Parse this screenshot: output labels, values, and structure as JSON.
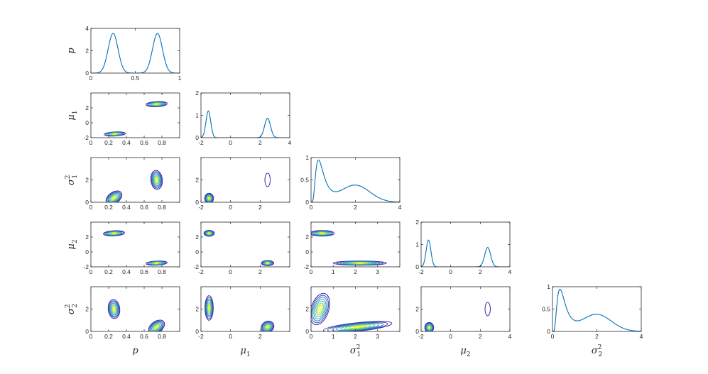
{
  "figure": {
    "type": "corner-plot",
    "layout": "lower-triangular 5x5"
  },
  "variables": [
    {
      "name": "p",
      "base": "p",
      "sub": "",
      "sup": ""
    },
    {
      "name": "mu1",
      "base": "μ",
      "sub": "1",
      "sup": ""
    },
    {
      "name": "sigma1sq",
      "base": "σ",
      "sub": "1",
      "sup": "2"
    },
    {
      "name": "mu2",
      "base": "μ",
      "sub": "2",
      "sup": ""
    },
    {
      "name": "sigma2sq",
      "base": "σ",
      "sub": "2",
      "sup": "2"
    }
  ],
  "colors": {
    "line": "#0072bd",
    "axis": "#262626",
    "contour_low": "#3e26a8",
    "contour_mid": "#2db2c8",
    "contour_high": "#f9fb0e"
  },
  "chart_data": [
    {
      "type": "line",
      "row": 0,
      "col": 0,
      "var": "p",
      "xlim": [
        0,
        1
      ],
      "ylim": [
        0,
        4
      ],
      "xticks": [
        {
          "v": 0,
          "label": "0"
        },
        {
          "v": 0.5,
          "label": "0.5"
        },
        {
          "v": 1,
          "label": "1"
        }
      ],
      "yticks": [
        {
          "v": 0,
          "label": "0"
        },
        {
          "v": 2,
          "label": "2"
        },
        {
          "v": 4,
          "label": "4"
        }
      ],
      "components": [
        {
          "mu": 0.25,
          "sd": 0.056,
          "amp": 3.55
        },
        {
          "mu": 0.75,
          "sd": 0.056,
          "amp": 3.55
        }
      ]
    },
    {
      "type": "line",
      "row": 1,
      "col": 1,
      "var": "mu1",
      "xlim": [
        -2,
        4
      ],
      "ylim": [
        0,
        2
      ],
      "xticks": [
        {
          "v": -2,
          "label": "-2"
        },
        {
          "v": 0,
          "label": "0"
        },
        {
          "v": 2,
          "label": "2"
        },
        {
          "v": 4,
          "label": "4"
        }
      ],
      "yticks": [
        {
          "v": 0,
          "label": "0"
        },
        {
          "v": 1,
          "label": "1"
        },
        {
          "v": 2,
          "label": "2"
        }
      ],
      "components": [
        {
          "mu": -1.5,
          "sd": 0.16,
          "amp": 1.2
        },
        {
          "mu": 2.5,
          "sd": 0.2,
          "amp": 0.87
        }
      ]
    },
    {
      "type": "line",
      "row": 2,
      "col": 2,
      "var": "sigma1sq",
      "xlim": [
        0,
        4
      ],
      "ylim": [
        0,
        1
      ],
      "xticks": [
        {
          "v": 0,
          "label": "0"
        },
        {
          "v": 2,
          "label": "2"
        },
        {
          "v": 4,
          "label": "4"
        }
      ],
      "yticks": [
        {
          "v": 0,
          "label": "0"
        },
        {
          "v": 0.5,
          "label": "0.5"
        },
        {
          "v": 1,
          "label": "1"
        }
      ],
      "components": [
        {
          "mu": 0.38,
          "sd": 0.2,
          "amp": 0.93,
          "logn": true
        },
        {
          "mu": 2.0,
          "sd": 0.65,
          "amp": 0.38
        }
      ]
    },
    {
      "type": "line",
      "row": 3,
      "col": 3,
      "var": "mu2",
      "xlim": [
        -2,
        4
      ],
      "ylim": [
        0,
        2
      ],
      "xticks": [
        {
          "v": -2,
          "label": "-2"
        },
        {
          "v": 0,
          "label": "0"
        },
        {
          "v": 2,
          "label": "2"
        },
        {
          "v": 4,
          "label": "4"
        }
      ],
      "yticks": [
        {
          "v": 0,
          "label": "0"
        },
        {
          "v": 1,
          "label": "1"
        },
        {
          "v": 2,
          "label": "2"
        }
      ],
      "components": [
        {
          "mu": -1.5,
          "sd": 0.16,
          "amp": 1.2
        },
        {
          "mu": 2.5,
          "sd": 0.2,
          "amp": 0.87
        }
      ]
    },
    {
      "type": "line",
      "row": 4,
      "col": 4,
      "var": "sigma2sq",
      "xlim": [
        0,
        4
      ],
      "ylim": [
        0,
        1
      ],
      "xticks": [
        {
          "v": 0,
          "label": "0"
        },
        {
          "v": 2,
          "label": "2"
        },
        {
          "v": 4,
          "label": "4"
        }
      ],
      "yticks": [
        {
          "v": 0,
          "label": "0"
        },
        {
          "v": 0.5,
          "label": "0.5"
        },
        {
          "v": 1,
          "label": "1"
        }
      ],
      "components": [
        {
          "mu": 0.38,
          "sd": 0.2,
          "amp": 0.93,
          "logn": true
        },
        {
          "mu": 2.0,
          "sd": 0.65,
          "amp": 0.38
        }
      ]
    },
    {
      "type": "contour",
      "row": 1,
      "col": 0,
      "xvar": "p",
      "yvar": "mu1",
      "xlim": [
        0,
        1
      ],
      "ylim": [
        -2,
        4
      ],
      "xticks": [
        {
          "v": 0,
          "label": "0"
        },
        {
          "v": 0.2,
          "label": "0.2"
        },
        {
          "v": 0.4,
          "label": "0.4"
        },
        {
          "v": 0.6,
          "label": "0.6"
        },
        {
          "v": 0.8,
          "label": "0.8"
        }
      ],
      "yticks": [
        {
          "v": -2,
          "label": "-2"
        },
        {
          "v": 0,
          "label": "0"
        },
        {
          "v": 2,
          "label": "2"
        }
      ],
      "modes": [
        {
          "cx": 0.27,
          "cy": -1.5,
          "rx": 0.12,
          "ry": 0.28,
          "rot": -3
        },
        {
          "cx": 0.74,
          "cy": 2.5,
          "rx": 0.12,
          "ry": 0.35,
          "rot": -3
        }
      ]
    },
    {
      "type": "contour",
      "row": 2,
      "col": 0,
      "xvar": "p",
      "yvar": "sigma1sq",
      "xlim": [
        0,
        1
      ],
      "ylim": [
        0,
        4
      ],
      "xticks": [
        {
          "v": 0,
          "label": "0"
        },
        {
          "v": 0.2,
          "label": "0.2"
        },
        {
          "v": 0.4,
          "label": "0.4"
        },
        {
          "v": 0.6,
          "label": "0.6"
        },
        {
          "v": 0.8,
          "label": "0.8"
        }
      ],
      "yticks": [
        {
          "v": 0,
          "label": "0"
        },
        {
          "v": 2,
          "label": "2"
        }
      ],
      "modes": [
        {
          "cx": 0.26,
          "cy": 0.4,
          "rx": 0.1,
          "ry": 0.5,
          "rot": -35
        },
        {
          "cx": 0.74,
          "cy": 2.0,
          "rx": 0.065,
          "ry": 0.85,
          "rot": -6
        }
      ]
    },
    {
      "type": "contour",
      "row": 3,
      "col": 0,
      "xvar": "p",
      "yvar": "mu2",
      "xlim": [
        0,
        1
      ],
      "ylim": [
        -2,
        4
      ],
      "xticks": [
        {
          "v": 0,
          "label": "0"
        },
        {
          "v": 0.2,
          "label": "0.2"
        },
        {
          "v": 0.4,
          "label": "0.4"
        },
        {
          "v": 0.6,
          "label": "0.6"
        },
        {
          "v": 0.8,
          "label": "0.8"
        }
      ],
      "yticks": [
        {
          "v": -2,
          "label": "-2"
        },
        {
          "v": 0,
          "label": "0"
        },
        {
          "v": 2,
          "label": "2"
        }
      ],
      "modes": [
        {
          "cx": 0.26,
          "cy": 2.5,
          "rx": 0.12,
          "ry": 0.35,
          "rot": -3
        },
        {
          "cx": 0.74,
          "cy": -1.5,
          "rx": 0.12,
          "ry": 0.28,
          "rot": -3
        }
      ]
    },
    {
      "type": "contour",
      "row": 4,
      "col": 0,
      "xvar": "p",
      "yvar": "sigma2sq",
      "xlim": [
        0,
        1
      ],
      "ylim": [
        0,
        4
      ],
      "xticks": [
        {
          "v": 0,
          "label": "0"
        },
        {
          "v": 0.2,
          "label": "0.2"
        },
        {
          "v": 0.4,
          "label": "0.4"
        },
        {
          "v": 0.6,
          "label": "0.6"
        },
        {
          "v": 0.8,
          "label": "0.8"
        }
      ],
      "yticks": [
        {
          "v": 0,
          "label": "0"
        },
        {
          "v": 2,
          "label": "2"
        }
      ],
      "modes": [
        {
          "cx": 0.26,
          "cy": 2.0,
          "rx": 0.065,
          "ry": 0.85,
          "rot": -6
        },
        {
          "cx": 0.74,
          "cy": 0.4,
          "rx": 0.1,
          "ry": 0.5,
          "rot": -35
        }
      ]
    },
    {
      "type": "contour",
      "row": 2,
      "col": 1,
      "xvar": "mu1",
      "yvar": "sigma1sq",
      "xlim": [
        -2,
        4
      ],
      "ylim": [
        0,
        4
      ],
      "xticks": [
        {
          "v": -2,
          "label": "-2"
        },
        {
          "v": 0,
          "label": "0"
        },
        {
          "v": 2,
          "label": "2"
        }
      ],
      "yticks": [
        {
          "v": 0,
          "label": "0"
        },
        {
          "v": 2,
          "label": "2"
        }
      ],
      "modes": [
        {
          "cx": -1.45,
          "cy": 0.35,
          "rx": 0.3,
          "ry": 0.45,
          "rot": 0
        },
        {
          "cx": 2.5,
          "cy": 2.0,
          "rx": 0.18,
          "ry": 0.6,
          "rot": 0,
          "levels": 1
        }
      ]
    },
    {
      "type": "contour",
      "row": 3,
      "col": 1,
      "xvar": "mu1",
      "yvar": "mu2",
      "xlim": [
        -2,
        4
      ],
      "ylim": [
        -2,
        4
      ],
      "xticks": [
        {
          "v": -2,
          "label": "-2"
        },
        {
          "v": 0,
          "label": "0"
        },
        {
          "v": 2,
          "label": "2"
        }
      ],
      "yticks": [
        {
          "v": -2,
          "label": "-2"
        },
        {
          "v": 0,
          "label": "0"
        },
        {
          "v": 2,
          "label": "2"
        }
      ],
      "modes": [
        {
          "cx": -1.45,
          "cy": 2.5,
          "rx": 0.35,
          "ry": 0.4,
          "rot": 0
        },
        {
          "cx": 2.5,
          "cy": -1.5,
          "rx": 0.42,
          "ry": 0.35,
          "rot": 0
        }
      ]
    },
    {
      "type": "contour",
      "row": 4,
      "col": 1,
      "xvar": "mu1",
      "yvar": "sigma2sq",
      "xlim": [
        -2,
        4
      ],
      "ylim": [
        0,
        4
      ],
      "xticks": [
        {
          "v": -2,
          "label": "-2"
        },
        {
          "v": 0,
          "label": "0"
        },
        {
          "v": 2,
          "label": "2"
        }
      ],
      "yticks": [
        {
          "v": 0,
          "label": "0"
        },
        {
          "v": 2,
          "label": "2"
        }
      ],
      "modes": [
        {
          "cx": -1.45,
          "cy": 2.1,
          "rx": 0.28,
          "ry": 1.1,
          "rot": 0
        },
        {
          "cx": 2.5,
          "cy": 0.4,
          "rx": 0.45,
          "ry": 0.5,
          "rot": -30
        }
      ]
    },
    {
      "type": "contour",
      "row": 3,
      "col": 2,
      "xvar": "sigma1sq",
      "yvar": "mu2",
      "xlim": [
        0,
        4
      ],
      "ylim": [
        -2,
        4
      ],
      "xticks": [
        {
          "v": 0,
          "label": "0"
        },
        {
          "v": 1,
          "label": "1"
        },
        {
          "v": 2,
          "label": "2"
        },
        {
          "v": 3,
          "label": "3"
        }
      ],
      "yticks": [
        {
          "v": -2,
          "label": "-2"
        },
        {
          "v": 0,
          "label": "0"
        },
        {
          "v": 2,
          "label": "2"
        }
      ],
      "modes": [
        {
          "cx": 0.5,
          "cy": 2.5,
          "rx": 0.55,
          "ry": 0.38,
          "rot": 0
        },
        {
          "cx": 2.2,
          "cy": -1.5,
          "rx": 1.2,
          "ry": 0.28,
          "rot": 0
        }
      ]
    },
    {
      "type": "contour",
      "row": 4,
      "col": 2,
      "xvar": "sigma1sq",
      "yvar": "sigma2sq",
      "xlim": [
        0,
        4
      ],
      "ylim": [
        0,
        4
      ],
      "xticks": [
        {
          "v": 0,
          "label": "0"
        },
        {
          "v": 1,
          "label": "1"
        },
        {
          "v": 2,
          "label": "2"
        },
        {
          "v": 3,
          "label": "3"
        }
      ],
      "yticks": [
        {
          "v": 0,
          "label": "0"
        },
        {
          "v": 2,
          "label": "2"
        }
      ],
      "modes": [
        {
          "cx": 0.4,
          "cy": 2.0,
          "rx": 0.4,
          "ry": 1.45,
          "rot": 18
        },
        {
          "cx": 2.1,
          "cy": 0.4,
          "rx": 1.55,
          "ry": 0.38,
          "rot": -6
        }
      ]
    },
    {
      "type": "contour",
      "row": 4,
      "col": 3,
      "xvar": "mu2",
      "yvar": "sigma2sq",
      "xlim": [
        -2,
        4
      ],
      "ylim": [
        0,
        4
      ],
      "xticks": [
        {
          "v": -2,
          "label": "-2"
        },
        {
          "v": 0,
          "label": "0"
        },
        {
          "v": 2,
          "label": "2"
        },
        {
          "v": 4,
          "label": "4"
        }
      ],
      "yticks": [
        {
          "v": 0,
          "label": "0"
        },
        {
          "v": 2,
          "label": "2"
        }
      ],
      "modes": [
        {
          "cx": -1.45,
          "cy": 0.35,
          "rx": 0.3,
          "ry": 0.45,
          "rot": 0
        },
        {
          "cx": 2.5,
          "cy": 2.0,
          "rx": 0.18,
          "ry": 0.6,
          "rot": 0,
          "levels": 1
        }
      ]
    }
  ]
}
